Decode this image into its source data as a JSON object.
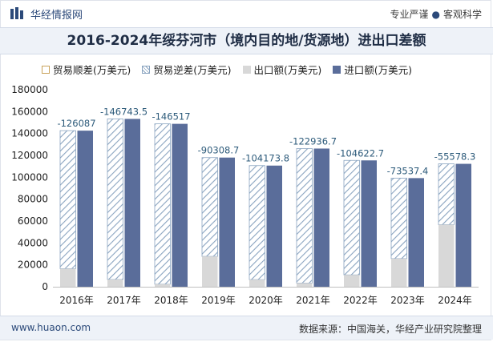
{
  "header": {
    "brand_name": "华经情报网",
    "slogan_left": "专业严谨",
    "slogan_sep": "●",
    "slogan_right": "客观科学"
  },
  "footer": {
    "site": "www.huaon.com",
    "source": "数据来源：中国海关，华经产业研究院整理"
  },
  "colors": {
    "import": "#5a6d9a",
    "export": "#d8d8d8",
    "deficit_hatch": "#8aa4c0",
    "label": "#2c5a7a"
  },
  "chart_data": {
    "type": "bar",
    "title": "2016-2024年绥芬河市（境内目的地/货源地）进出口差额",
    "categories": [
      "2016年",
      "2017年",
      "2018年",
      "2019年",
      "2020年",
      "2021年",
      "2022年",
      "2023年",
      "2024年"
    ],
    "series": [
      {
        "name": "贸易顺差(万美元)",
        "values": [
          0,
          0,
          0,
          0,
          0,
          0,
          0,
          0,
          0
        ]
      },
      {
        "name": "贸易逆差(万美元)",
        "values": [
          -126087,
          -146743.5,
          -146517,
          -90308.7,
          -104173.8,
          -122936.7,
          -104622.7,
          -73537.4,
          -55578.3
        ]
      },
      {
        "name": "出口额(万美元)",
        "values": [
          16500,
          6600,
          2300,
          27700,
          6500,
          3300,
          10800,
          25700,
          56700
        ]
      },
      {
        "name": "进口额(万美元)",
        "values": [
          142587,
          153343.5,
          148817,
          118008.7,
          110673.8,
          126236.7,
          115422.7,
          99237.4,
          112278.3
        ]
      }
    ],
    "data_labels": [
      "-126087",
      "-146743.5",
      "-146517",
      "-90308.7",
      "-104173.8",
      "-122936.7",
      "-104622.7",
      "-73537.4",
      "-55578.3"
    ],
    "yticks": [
      "180000",
      "160000",
      "140000",
      "120000",
      "100000",
      "80000",
      "60000",
      "40000",
      "20000",
      "0"
    ],
    "ylim": [
      0,
      180000
    ],
    "xlabel": "",
    "ylabel": "",
    "legend_position": "top"
  }
}
